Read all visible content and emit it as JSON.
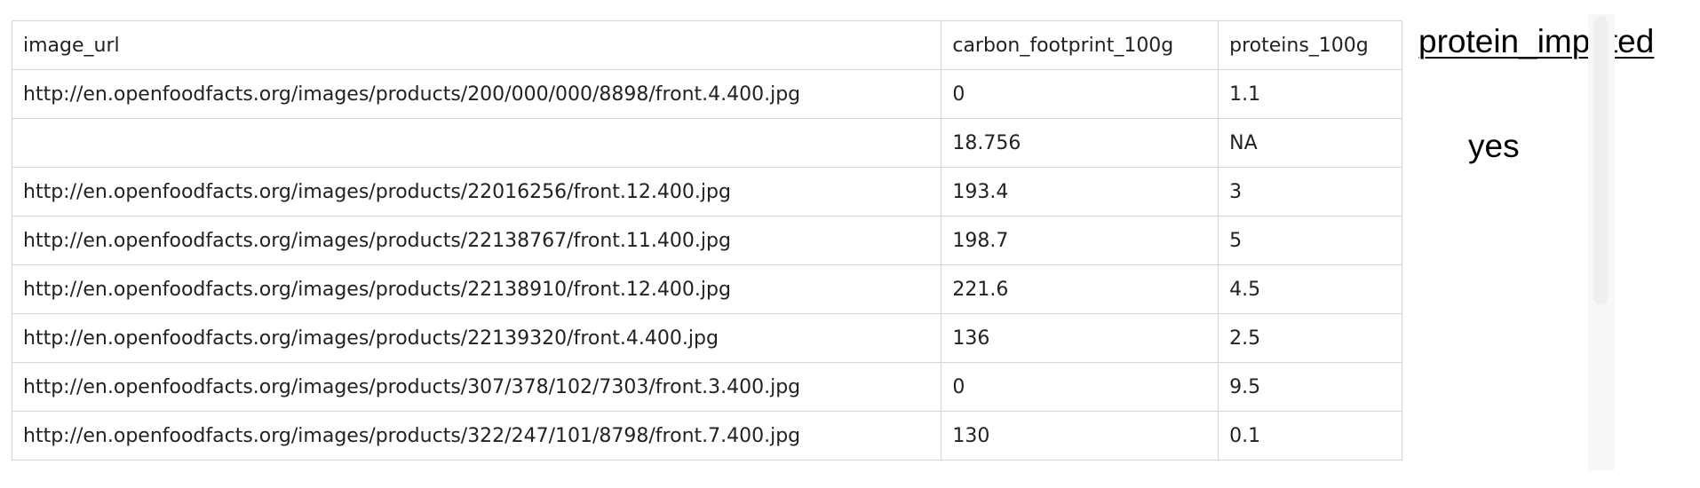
{
  "table": {
    "headers": [
      "image_url",
      "carbon_footprint_100g",
      "proteins_100g"
    ],
    "rows": [
      [
        "http://en.openfoodfacts.org/images/products/200/000/000/8898/front.4.400.jpg",
        "0",
        "1.1"
      ],
      [
        "",
        "18.756",
        "NA"
      ],
      [
        "http://en.openfoodfacts.org/images/products/22016256/front.12.400.jpg",
        "193.4",
        "3"
      ],
      [
        "http://en.openfoodfacts.org/images/products/22138767/front.11.400.jpg",
        "198.7",
        "5"
      ],
      [
        "http://en.openfoodfacts.org/images/products/22138910/front.12.400.jpg",
        "221.6",
        "4.5"
      ],
      [
        "http://en.openfoodfacts.org/images/products/22139320/front.4.400.jpg",
        "136",
        "2.5"
      ],
      [
        "http://en.openfoodfacts.org/images/products/307/378/102/7303/front.3.400.jpg",
        "0",
        "9.5"
      ],
      [
        "http://en.openfoodfacts.org/images/products/322/247/101/8798/front.7.400.jpg",
        "130",
        "0.1"
      ]
    ]
  },
  "overlay": {
    "header": "protein_imputed",
    "cell": "yes"
  }
}
